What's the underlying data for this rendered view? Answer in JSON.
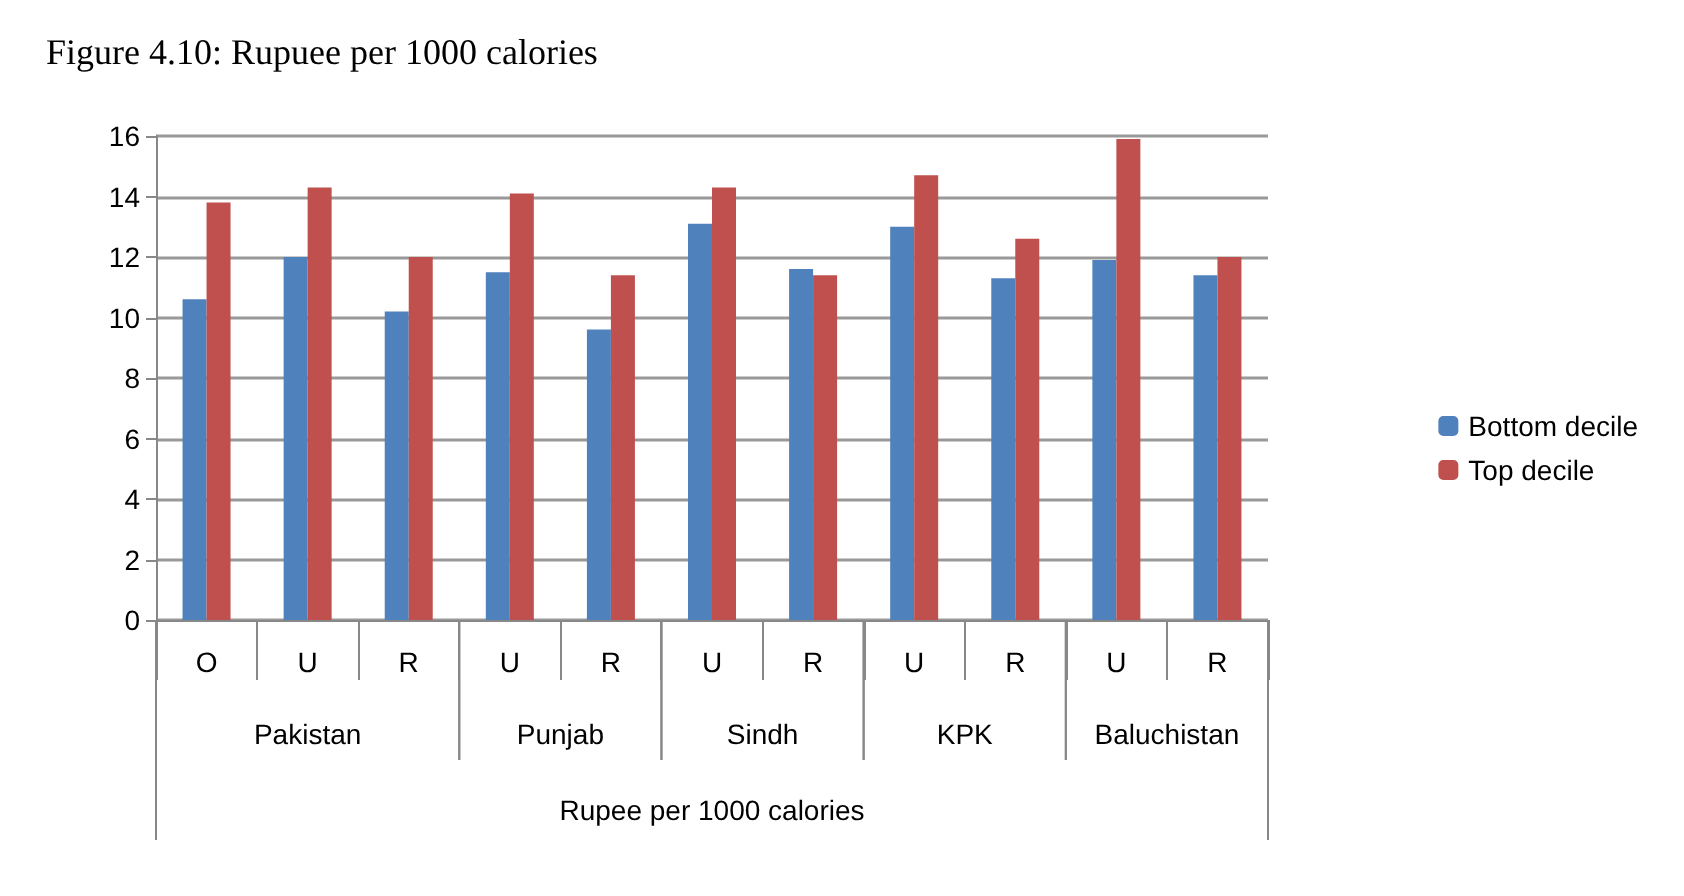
{
  "chart_data": {
    "type": "bar",
    "title": "Figure 4.10: Rupuee per 1000 calories",
    "xlabel": "Rupee per 1000 calories",
    "categories": [
      "O",
      "U",
      "R",
      "U",
      "R",
      "U",
      "R",
      "U",
      "R",
      "U",
      "R"
    ],
    "annotations": [
      "Pakistan",
      "Punjab",
      "Sindh",
      "KPK",
      "Baluchistan"
    ],
    "series": [
      {
        "name": "Bottom decile",
        "color": "#4f81bd",
        "values": [
          10.6,
          12.0,
          10.2,
          11.5,
          9.6,
          13.1,
          11.6,
          13.0,
          11.3,
          11.9,
          11.4
        ]
      },
      {
        "name": "Top decile",
        "color": "#c0504d",
        "values": [
          13.8,
          14.3,
          12.0,
          14.1,
          11.4,
          14.3,
          11.4,
          14.7,
          12.6,
          15.9,
          12.0
        ]
      }
    ],
    "ylim": [
      0,
      16
    ],
    "yticks": [
      0,
      2,
      4,
      6,
      8,
      10,
      12,
      14,
      16
    ],
    "grid": "y",
    "legend": "right"
  }
}
